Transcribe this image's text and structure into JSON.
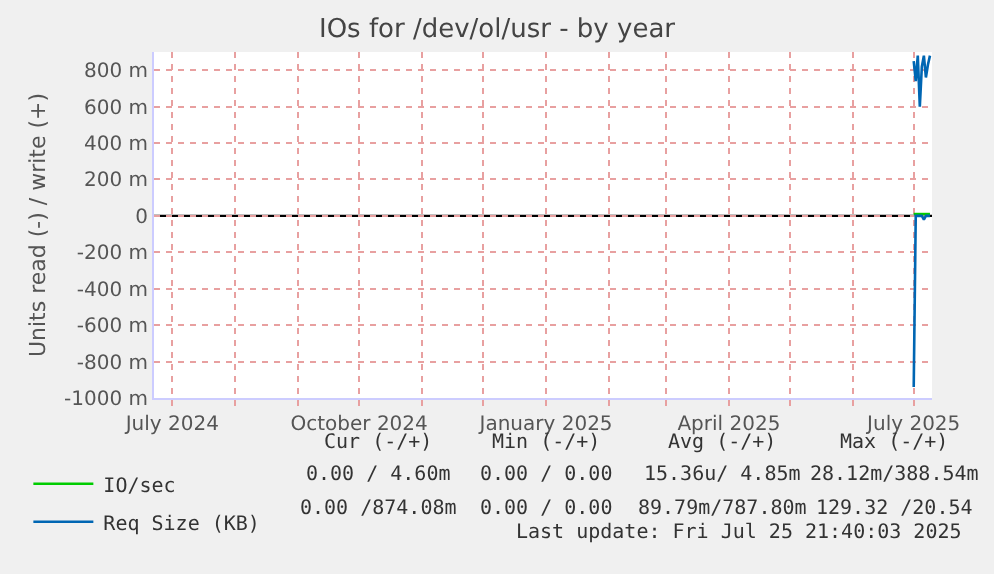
{
  "chart_data": {
    "type": "line",
    "title": "IOs for /dev/ol/usr - by year",
    "ylabel": "Units read (-) / write (+)",
    "series": [
      {
        "name": "IO/sec",
        "color": "#00cc00",
        "x": [
          "2025-07-01",
          "2025-07-03",
          "2025-07-05",
          "2025-07-07",
          "2025-07-09"
        ],
        "values": [
          10,
          10,
          10,
          10,
          10
        ]
      },
      {
        "name": "Req Size (KB)",
        "color": "#0066b3",
        "x": [
          "2025-07-01",
          "2025-07-02",
          "2025-07-03",
          "2025-07-04",
          "2025-07-05",
          "2025-07-06",
          "2025-07-07",
          "2025-07-08",
          "2025-07-09"
        ],
        "values": [
          850,
          740,
          880,
          600,
          820,
          880,
          760,
          830,
          880
        ]
      },
      {
        "color": "#0066b3",
        "x": [
          "2025-07-01",
          "2025-07-02",
          "2025-07-03",
          "2025-07-04",
          "2025-07-05",
          "2025-07-06",
          "2025-07-07",
          "2025-07-08",
          "2025-07-09"
        ],
        "values": [
          -940,
          0,
          0,
          0,
          0,
          -20,
          0,
          0,
          0
        ]
      }
    ],
    "xlim": [
      "2024-06-22",
      "2025-07-10"
    ],
    "xticks": [
      {
        "value": "2024-07-01",
        "label": "July 2024"
      },
      {
        "value": "2024-08-01",
        "label": null
      },
      {
        "value": "2024-09-01",
        "label": null
      },
      {
        "value": "2024-10-01",
        "label": "October 2024"
      },
      {
        "value": "2024-11-01",
        "label": null
      },
      {
        "value": "2024-12-01",
        "label": null
      },
      {
        "value": "2025-01-01",
        "label": "January 2025"
      },
      {
        "value": "2025-02-01",
        "label": null
      },
      {
        "value": "2025-03-01",
        "label": null
      },
      {
        "value": "2025-04-01",
        "label": "April 2025"
      },
      {
        "value": "2025-05-01",
        "label": null
      },
      {
        "value": "2025-06-01",
        "label": null
      },
      {
        "value": "2025-07-01",
        "label": "July 2025"
      }
    ],
    "ylim": [
      -1000,
      900
    ],
    "yticks": [
      {
        "value": -1000,
        "label": "-1000 m"
      },
      {
        "value": -800,
        "label": "-800 m"
      },
      {
        "value": -600,
        "label": "-600 m"
      },
      {
        "value": -400,
        "label": "-400 m"
      },
      {
        "value": -200,
        "label": "-200 m"
      },
      0,
      {
        "value": 200,
        "label": "200 m"
      },
      {
        "value": 400,
        "label": "400 m"
      },
      {
        "value": 600,
        "label": "600 m"
      },
      {
        "value": 800,
        "label": "800 m"
      }
    ],
    "ref_lines": [
      {
        "axis": "y",
        "value": 0,
        "color": "#000000"
      }
    ],
    "grid": true,
    "legend": "bottom left",
    "annotations": [
      "Cur (-/+)",
      "Min (-/+)",
      "Avg (-/+)",
      "Max (-/+)",
      "0.00 / 4.60m",
      "0.00 / 0.00",
      "15.36u/ 4.85m",
      "28.12m/388.54m",
      "0.00 /874.08m",
      "0.00 / 0.00",
      "89.79m/787.80m",
      "129.32 /20.54",
      "Last update: Fri Jul 25 21:40:03 2025"
    ]
  }
}
